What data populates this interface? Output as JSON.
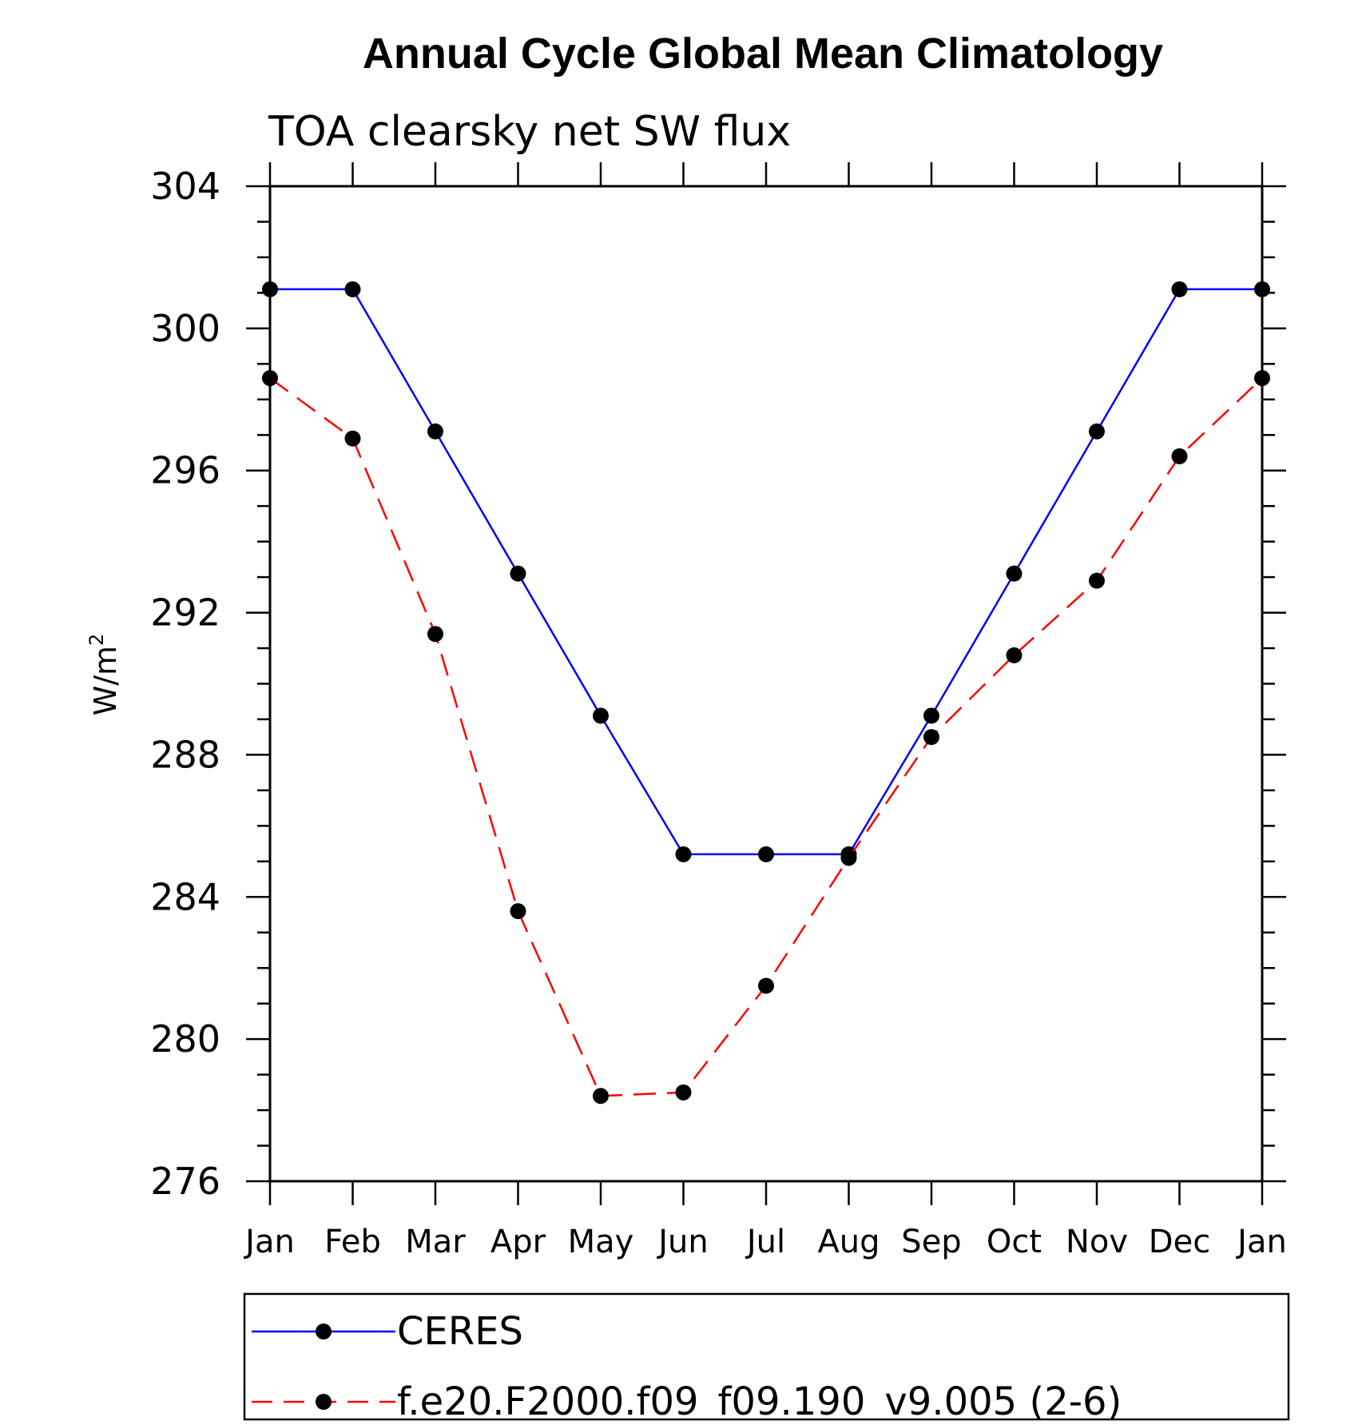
{
  "chart_data": {
    "type": "line",
    "title": "Annual Cycle Global Mean Climatology",
    "subtitle": "TOA clearsky net SW flux",
    "ylabel": "W/m",
    "ylabel_superscript": "2",
    "xlabel": "",
    "ylim": [
      276,
      304
    ],
    "yticks": [
      "276",
      "280",
      "284",
      "288",
      "292",
      "296",
      "300",
      "304"
    ],
    "y_minor_step": 1,
    "categories": [
      "Jan",
      "Feb",
      "Mar",
      "Apr",
      "May",
      "Jun",
      "Jul",
      "Aug",
      "Sep",
      "Oct",
      "Nov",
      "Dec",
      "Jan"
    ],
    "grid": false,
    "legend_position": "bottom",
    "series": [
      {
        "name": "CERES",
        "color": "#0000ff",
        "dash": "solid",
        "marker": "filled-circle",
        "values": [
          301.1,
          301.1,
          297.1,
          293.1,
          289.1,
          285.2,
          285.2,
          285.2,
          289.1,
          293.1,
          297.1,
          301.1,
          301.1
        ]
      },
      {
        "name": "f.e20.F2000.f09_f09.190_v9.005 (2-6)",
        "color": "#ff0000",
        "dash": "dashed",
        "marker": "filled-circle",
        "values": [
          298.6,
          296.9,
          291.4,
          283.6,
          278.4,
          278.5,
          281.5,
          285.1,
          288.5,
          290.8,
          292.9,
          296.4,
          298.6
        ]
      }
    ]
  }
}
